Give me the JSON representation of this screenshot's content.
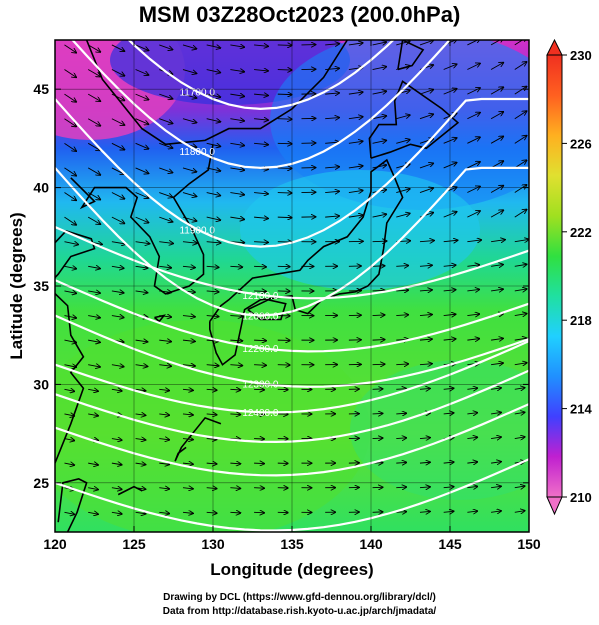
{
  "title": "MSM 03Z28Oct2023 (200.0hPa)",
  "xaxis": {
    "label": "Longitude (degrees)",
    "ticks": [
      "120",
      "125",
      "130",
      "135",
      "140",
      "145",
      "150"
    ],
    "range": [
      120,
      150
    ]
  },
  "yaxis": {
    "label": "Latitude  (degrees)",
    "ticks": [
      "25",
      "30",
      "35",
      "40",
      "45"
    ],
    "range": [
      22.5,
      47.5
    ]
  },
  "colorbar": {
    "ticks": [
      "210",
      "214",
      "218",
      "222",
      "226",
      "230"
    ],
    "min": 210,
    "max": 230,
    "colors": [
      "#f070c8",
      "#c020d0",
      "#4040ff",
      "#2090ff",
      "#20d0ff",
      "#20e0a0",
      "#30e040",
      "#a0e020",
      "#e0e030",
      "#ffb020",
      "#ff6020",
      "#f03020"
    ]
  },
  "contours": [
    {
      "label": "11700.0",
      "lat_at_left": 51.5
    },
    {
      "label": "11800.0",
      "lat_at_left": 48.5
    },
    {
      "label": "11900.0",
      "lat_at_left": 44.5
    },
    {
      "label": "12000.0",
      "lat_at_left": 41.0
    },
    {
      "label": "12100.0",
      "lat_at_left": 38.0
    },
    {
      "label": "12200.0",
      "lat_at_left": 35.3
    },
    {
      "label": "12300.0",
      "lat_at_left": 33.5
    },
    {
      "label": "12400.0",
      "lat_at_left": 31.0
    },
    {
      "label": "",
      "lat_at_left": 29.5
    },
    {
      "label": "",
      "lat_at_left": 27.8
    },
    {
      "label": "",
      "lat_at_left": 25.0
    }
  ],
  "footer": {
    "line1": "Drawing by DCL (https://www.gfd-dennou.org/library/dcl/)",
    "line2": "Data from http://database.rish.kyoto-u.ac.jp/arch/jmadata/"
  },
  "chart_data": {
    "type": "heatmap",
    "title": "MSM 03Z28Oct2023 (200.0hPa)",
    "xlabel": "Longitude (degrees)",
    "ylabel": "Latitude  (degrees)",
    "xlim": [
      120,
      150
    ],
    "ylim": [
      22.5,
      47.5
    ],
    "colorbar_range": [
      210,
      230
    ],
    "field_samples": [
      {
        "lon": 121,
        "lat": 46,
        "value": 210
      },
      {
        "lon": 126,
        "lat": 43,
        "value": 213
      },
      {
        "lon": 132,
        "lat": 44,
        "value": 215
      },
      {
        "lon": 140,
        "lat": 45,
        "value": 216
      },
      {
        "lon": 148,
        "lat": 45,
        "value": 217
      },
      {
        "lon": 125,
        "lat": 40,
        "value": 215
      },
      {
        "lon": 138,
        "lat": 39,
        "value": 218
      },
      {
        "lon": 146,
        "lat": 38,
        "value": 219
      },
      {
        "lon": 128,
        "lat": 34,
        "value": 221
      },
      {
        "lon": 140,
        "lat": 33,
        "value": 222
      },
      {
        "lon": 125,
        "lat": 29,
        "value": 223
      },
      {
        "lon": 135,
        "lat": 28,
        "value": 222
      },
      {
        "lon": 145,
        "lat": 27,
        "value": 222
      },
      {
        "lon": 130,
        "lat": 24,
        "value": 221
      }
    ],
    "wind_direction": "westerly"
  }
}
